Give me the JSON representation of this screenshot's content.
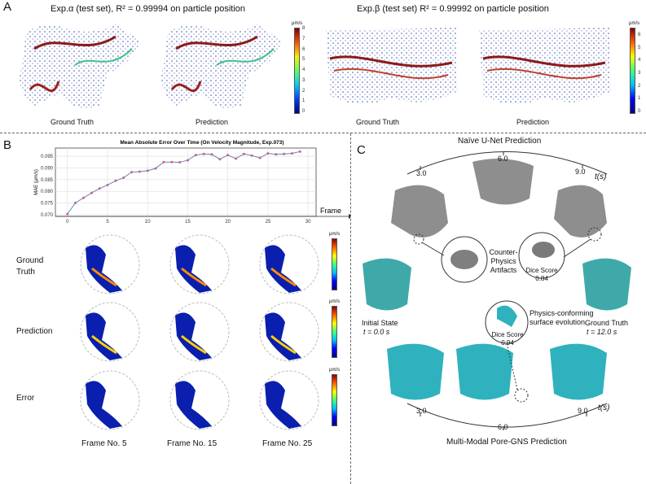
{
  "panelA": {
    "letter": "A",
    "exp_alpha_title": "Exp.α  (test set), R² = 0.99994 on particle position",
    "exp_beta_title": "Exp.β (test set) R² = 0.99992 on particle position",
    "labels": [
      "Ground Truth",
      "Prediction",
      "Ground Truth",
      "Prediction"
    ],
    "cbar1_unit": "μm/s",
    "cbar1_ticks": [
      "8",
      "7",
      "6",
      "5",
      "4",
      "3",
      "2",
      "1",
      "0"
    ],
    "cbar2_unit": "μm/s",
    "cbar2_ticks": [
      "6",
      "5",
      "4",
      "3",
      "2",
      "1",
      "0"
    ]
  },
  "panelB": {
    "letter": "B",
    "row_labels": [
      "Ground Truth",
      "Prediction",
      "Error"
    ],
    "frame_labels": [
      "Frame No. 5",
      "Frame No. 15",
      "Frame No. 25"
    ],
    "cbar_unit": "μm/s"
  },
  "panelC": {
    "letter": "C",
    "naive_title": "Naïve U-Net Prediction",
    "multi_title": "Multi-Modal Pore-GNS Prediction",
    "time_ticks_top": [
      "3.0",
      "6.0",
      "9.0"
    ],
    "time_ticks_bottom": [
      "3.0",
      "6.0",
      "9.0"
    ],
    "time_axis_label": "t(s)",
    "counter_physics": "Counter-Physics Artifacts",
    "dice_label": "Dice Score",
    "dice_naive": "0.84",
    "dice_gns": "0.94",
    "initial_state": "Initial State",
    "initial_t": "t = 0.0 s",
    "ground_truth": "Ground Truth",
    "ground_truth_t": "t = 12.0 s",
    "physics_conforming": "Physics-conforming surface evolution"
  },
  "chart_data": {
    "type": "line",
    "title": "Mean Absolute Error Over Time (On Velocity Magnitude, Exp.073)",
    "xlabel": "Frame",
    "ylabel": "MAE (μm/s)",
    "xlim": [
      -1.5,
      31
    ],
    "ylim": [
      0.0693,
      0.0985
    ],
    "xticks": [
      0,
      5,
      10,
      15,
      20,
      25,
      30
    ],
    "yticks": [
      0.07,
      0.075,
      0.08,
      0.085,
      0.09,
      0.095
    ],
    "ytick_labels": [
      "0.070",
      "0.075",
      "0.080",
      "0.085",
      "0.090",
      "0.095"
    ],
    "x": [
      0,
      1,
      2,
      3,
      4,
      5,
      6,
      7,
      8,
      9,
      10,
      11,
      12,
      13,
      14,
      15,
      16,
      17,
      18,
      19,
      20,
      21,
      22,
      23,
      24,
      25,
      26,
      27,
      28,
      29
    ],
    "values": [
      0.0703,
      0.0751,
      0.0772,
      0.0793,
      0.0812,
      0.0827,
      0.0845,
      0.0858,
      0.0882,
      0.0884,
      0.0888,
      0.0898,
      0.0925,
      0.0925,
      0.0924,
      0.0933,
      0.0955,
      0.096,
      0.0958,
      0.0937,
      0.0955,
      0.094,
      0.096,
      0.0953,
      0.0943,
      0.0962,
      0.0958,
      0.096,
      0.0962,
      0.097
    ],
    "color": "#4a8fc9",
    "marker_color": "#e05a7a"
  }
}
